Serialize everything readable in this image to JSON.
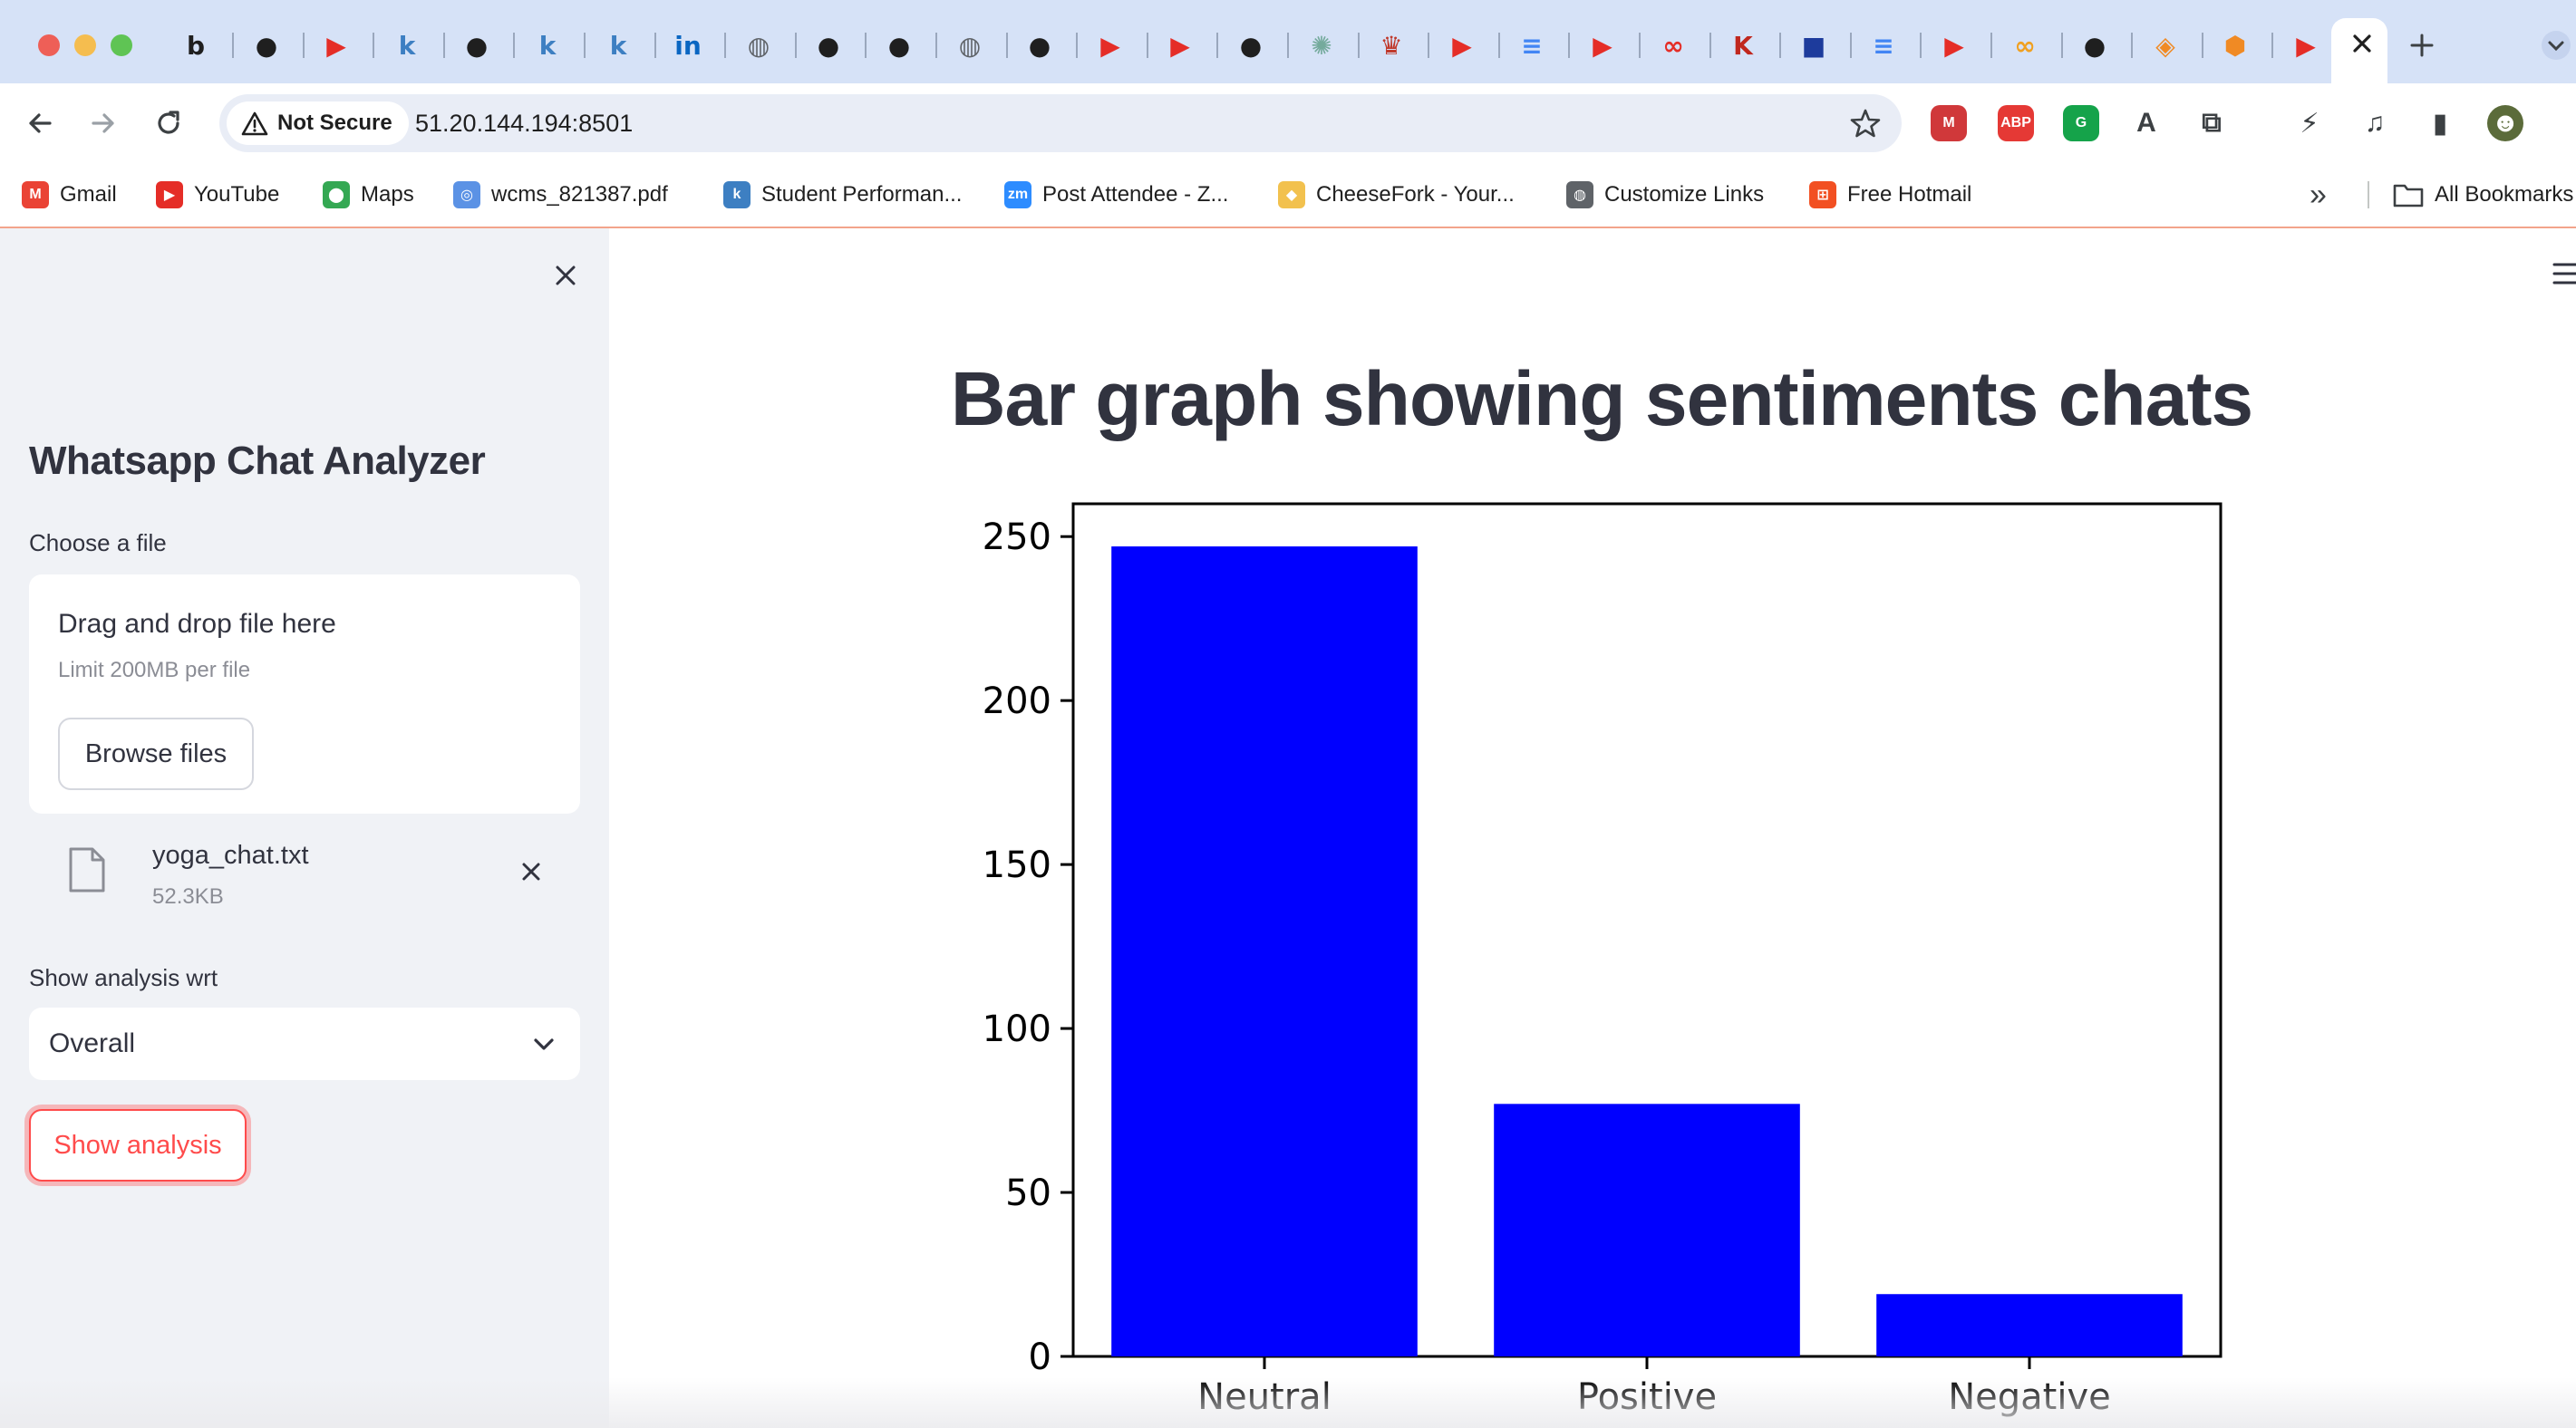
{
  "browser": {
    "tabs": [
      {
        "icon": "beeper-icon",
        "color": "#1f1f1f",
        "glyph": "b"
      },
      {
        "icon": "github-icon",
        "color": "#1f1f1f",
        "glyph": "●"
      },
      {
        "icon": "youtube-icon",
        "color": "#e52d27",
        "glyph": "▶"
      },
      {
        "icon": "k-app-icon",
        "color": "#3d7fc2",
        "glyph": "k"
      },
      {
        "icon": "github-icon",
        "color": "#1f1f1f",
        "glyph": "●"
      },
      {
        "icon": "k-app-icon",
        "color": "#3d7fc2",
        "glyph": "k"
      },
      {
        "icon": "k-app-icon",
        "color": "#3d7fc2",
        "glyph": "k"
      },
      {
        "icon": "linkedin-icon",
        "color": "#0a66c2",
        "glyph": "in"
      },
      {
        "icon": "globe-icon",
        "color": "#5f6368",
        "glyph": "◍"
      },
      {
        "icon": "github-icon",
        "color": "#1f1f1f",
        "glyph": "●"
      },
      {
        "icon": "github-icon",
        "color": "#1f1f1f",
        "glyph": "●"
      },
      {
        "icon": "globe-icon",
        "color": "#5f6368",
        "glyph": "◍"
      },
      {
        "icon": "github-icon",
        "color": "#1f1f1f",
        "glyph": "●"
      },
      {
        "icon": "youtube-icon",
        "color": "#e52d27",
        "glyph": "▶"
      },
      {
        "icon": "youtube-icon",
        "color": "#e52d27",
        "glyph": "▶"
      },
      {
        "icon": "github-icon",
        "color": "#1f1f1f",
        "glyph": "●"
      },
      {
        "icon": "openai-icon",
        "color": "#74aa9c",
        "glyph": "✺"
      },
      {
        "icon": "crown-icon",
        "color": "#c0392b",
        "glyph": "♛"
      },
      {
        "icon": "youtube-icon",
        "color": "#e52d27",
        "glyph": "▶"
      },
      {
        "icon": "docs-icon",
        "color": "#4285f4",
        "glyph": "≡"
      },
      {
        "icon": "youtube-icon",
        "color": "#e52d27",
        "glyph": "▶"
      },
      {
        "icon": "coursera-icon",
        "color": "#e52d27",
        "glyph": "∞"
      },
      {
        "icon": "k-red-icon",
        "color": "#c0271e",
        "glyph": "K"
      },
      {
        "icon": "puzzle-icon",
        "color": "#1d3b9c",
        "glyph": "■"
      },
      {
        "icon": "docs-icon",
        "color": "#4285f4",
        "glyph": "≡"
      },
      {
        "icon": "youtube-icon",
        "color": "#e52d27",
        "glyph": "▶"
      },
      {
        "icon": "coursera-icon",
        "color": "#f0a020",
        "glyph": "∞"
      },
      {
        "icon": "github-icon",
        "color": "#1f1f1f",
        "glyph": "●"
      },
      {
        "icon": "orange-app-icon",
        "color": "#f08a24",
        "glyph": "◈"
      },
      {
        "icon": "box-icon",
        "color": "#f08a24",
        "glyph": "⬢"
      },
      {
        "icon": "youtube-icon",
        "color": "#e52d27",
        "glyph": "▶"
      }
    ],
    "security_label": "Not Secure",
    "url": "51.20.144.194:8501",
    "extensions": [
      {
        "icon": "mendeley-icon",
        "color": "#d0383a",
        "glyph": "M"
      },
      {
        "icon": "adblock-icon",
        "color": "#e53935",
        "glyph": "ABP"
      },
      {
        "icon": "grammarly-icon",
        "color": "#15a34a",
        "glyph": "G"
      },
      {
        "icon": "spellcheck-icon",
        "color": "#3c4043",
        "glyph": "A"
      },
      {
        "icon": "extensions-icon",
        "color": "#3c4043",
        "glyph": "⧉"
      },
      {
        "icon": "performance-icon",
        "color": "#3c4043",
        "glyph": "⚡"
      },
      {
        "icon": "media-control-icon",
        "color": "#3c4043",
        "glyph": "♫"
      },
      {
        "icon": "side-panel-icon",
        "color": "#3c4043",
        "glyph": "▮"
      },
      {
        "icon": "profile-avatar-icon",
        "color": "#5b6b3a",
        "glyph": "☻"
      }
    ],
    "bookmarks": [
      {
        "label": "Gmail",
        "icon": "gmail-icon",
        "color": "#ea4335",
        "glyph": "M"
      },
      {
        "label": "YouTube",
        "icon": "youtube-icon",
        "color": "#e52d27",
        "glyph": "▶"
      },
      {
        "label": "Maps",
        "icon": "maps-icon",
        "color": "#34a853",
        "glyph": "⬤"
      },
      {
        "label": "wcms_821387.pdf",
        "icon": "un-icon",
        "color": "#5b92e5",
        "glyph": "◎"
      },
      {
        "label": "Student Performan...",
        "icon": "k-app-icon",
        "color": "#3d7fc2",
        "glyph": "k"
      },
      {
        "label": "Post Attendee - Z...",
        "icon": "zoom-icon",
        "color": "#2d8cff",
        "glyph": "zm"
      },
      {
        "label": "CheeseFork - Your...",
        "icon": "cheese-icon",
        "color": "#f2c14e",
        "glyph": "◆"
      },
      {
        "label": "Customize Links",
        "icon": "globe-icon",
        "color": "#5f6368",
        "glyph": "◍"
      },
      {
        "label": "Free Hotmail",
        "icon": "microsoft-icon",
        "color": "#f25022",
        "glyph": "⊞"
      }
    ],
    "more_label": "»",
    "all_bookmarks_label": "All Bookmarks"
  },
  "sidebar": {
    "title": "Whatsapp Chat Analyzer",
    "file_label": "Choose a file",
    "drop_title": "Drag and drop file here",
    "drop_limit": "Limit 200MB per file",
    "browse_label": "Browse files",
    "file_name": "yoga_chat.txt",
    "file_size": "52.3KB",
    "select_label": "Show analysis wrt",
    "select_value": "Overall",
    "show_button": "Show analysis"
  },
  "main": {
    "title": "Bar graph showing sentiments chats"
  },
  "chart_data": {
    "type": "bar",
    "categories": [
      "Neutral",
      "Positive",
      "Negative"
    ],
    "values": [
      247,
      77,
      19
    ],
    "color": "#0000ff",
    "ylim": [
      0,
      260
    ],
    "yticks": [
      0,
      50,
      100,
      150,
      200,
      250
    ],
    "grid": false
  }
}
